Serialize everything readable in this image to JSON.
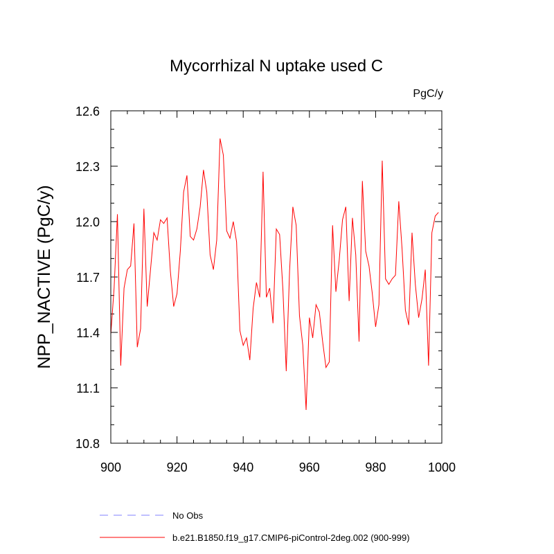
{
  "chart_data": {
    "type": "line",
    "title": "Mycorrhizal N uptake used C",
    "units": "PgC/y",
    "xlabel": "",
    "ylabel": "NPP_NACTIVE  (PgC/y)",
    "xlim": [
      900,
      1000
    ],
    "ylim": [
      10.8,
      12.6
    ],
    "xticks": [
      900,
      920,
      940,
      960,
      980,
      1000
    ],
    "xtick_labels": [
      "900",
      "920",
      "940",
      "960",
      "980",
      "1000"
    ],
    "yticks": [
      10.8,
      11.1,
      11.4,
      11.7,
      12.0,
      12.3,
      12.6
    ],
    "ytick_labels": [
      "10.8",
      "11.1",
      "11.4",
      "11.7",
      "12.0",
      "12.3",
      "12.6"
    ],
    "x": [
      900,
      901,
      902,
      903,
      904,
      905,
      906,
      907,
      908,
      909,
      910,
      911,
      912,
      913,
      914,
      915,
      916,
      917,
      918,
      919,
      920,
      921,
      922,
      923,
      924,
      925,
      926,
      927,
      928,
      929,
      930,
      931,
      932,
      933,
      934,
      935,
      936,
      937,
      938,
      939,
      940,
      941,
      942,
      943,
      944,
      945,
      946,
      947,
      948,
      949,
      950,
      951,
      952,
      953,
      954,
      955,
      956,
      957,
      958,
      959,
      960,
      961,
      962,
      963,
      964,
      965,
      966,
      967,
      968,
      969,
      970,
      971,
      972,
      973,
      974,
      975,
      976,
      977,
      978,
      979,
      980,
      981,
      982,
      983,
      984,
      985,
      986,
      987,
      988,
      989,
      990,
      991,
      992,
      993,
      994,
      995,
      996,
      997,
      998,
      999
    ],
    "series": [
      {
        "name": "b.e21.B1850.f19_g17.CMIP6-piControl-2deg.002 (900-999)",
        "color": "#ff0000",
        "values": [
          11.39,
          11.64,
          12.04,
          11.22,
          11.64,
          11.74,
          11.76,
          11.99,
          11.32,
          11.42,
          12.07,
          11.54,
          11.74,
          11.94,
          11.9,
          12.01,
          11.99,
          12.02,
          11.73,
          11.54,
          11.61,
          11.84,
          12.16,
          12.25,
          11.92,
          11.9,
          11.96,
          12.08,
          12.28,
          12.16,
          11.82,
          11.74,
          11.9,
          12.45,
          12.36,
          11.95,
          11.91,
          12.0,
          11.89,
          11.41,
          11.33,
          11.37,
          11.25,
          11.53,
          11.67,
          11.59,
          12.27,
          11.59,
          11.64,
          11.45,
          11.96,
          11.93,
          11.63,
          11.19,
          11.73,
          12.08,
          11.98,
          11.49,
          11.33,
          10.98,
          11.48,
          11.37,
          11.55,
          11.51,
          11.35,
          11.21,
          11.24,
          11.98,
          11.62,
          11.79,
          12.01,
          12.08,
          11.57,
          12.02,
          11.82,
          11.35,
          12.22,
          11.84,
          11.76,
          11.61,
          11.43,
          11.55,
          12.33,
          11.69,
          11.66,
          11.69,
          11.71,
          12.11,
          11.85,
          11.52,
          11.44,
          11.94,
          11.66,
          11.48,
          11.58,
          11.74,
          11.22,
          11.94,
          12.03,
          12.05
        ]
      }
    ],
    "legend": [
      {
        "label": "No Obs",
        "color": "#8080ff",
        "style": "dashed"
      },
      {
        "label": "b.e21.B1850.f19_g17.CMIP6-piControl-2deg.002 (900-999)",
        "color": "#ff0000",
        "style": "solid"
      }
    ]
  }
}
